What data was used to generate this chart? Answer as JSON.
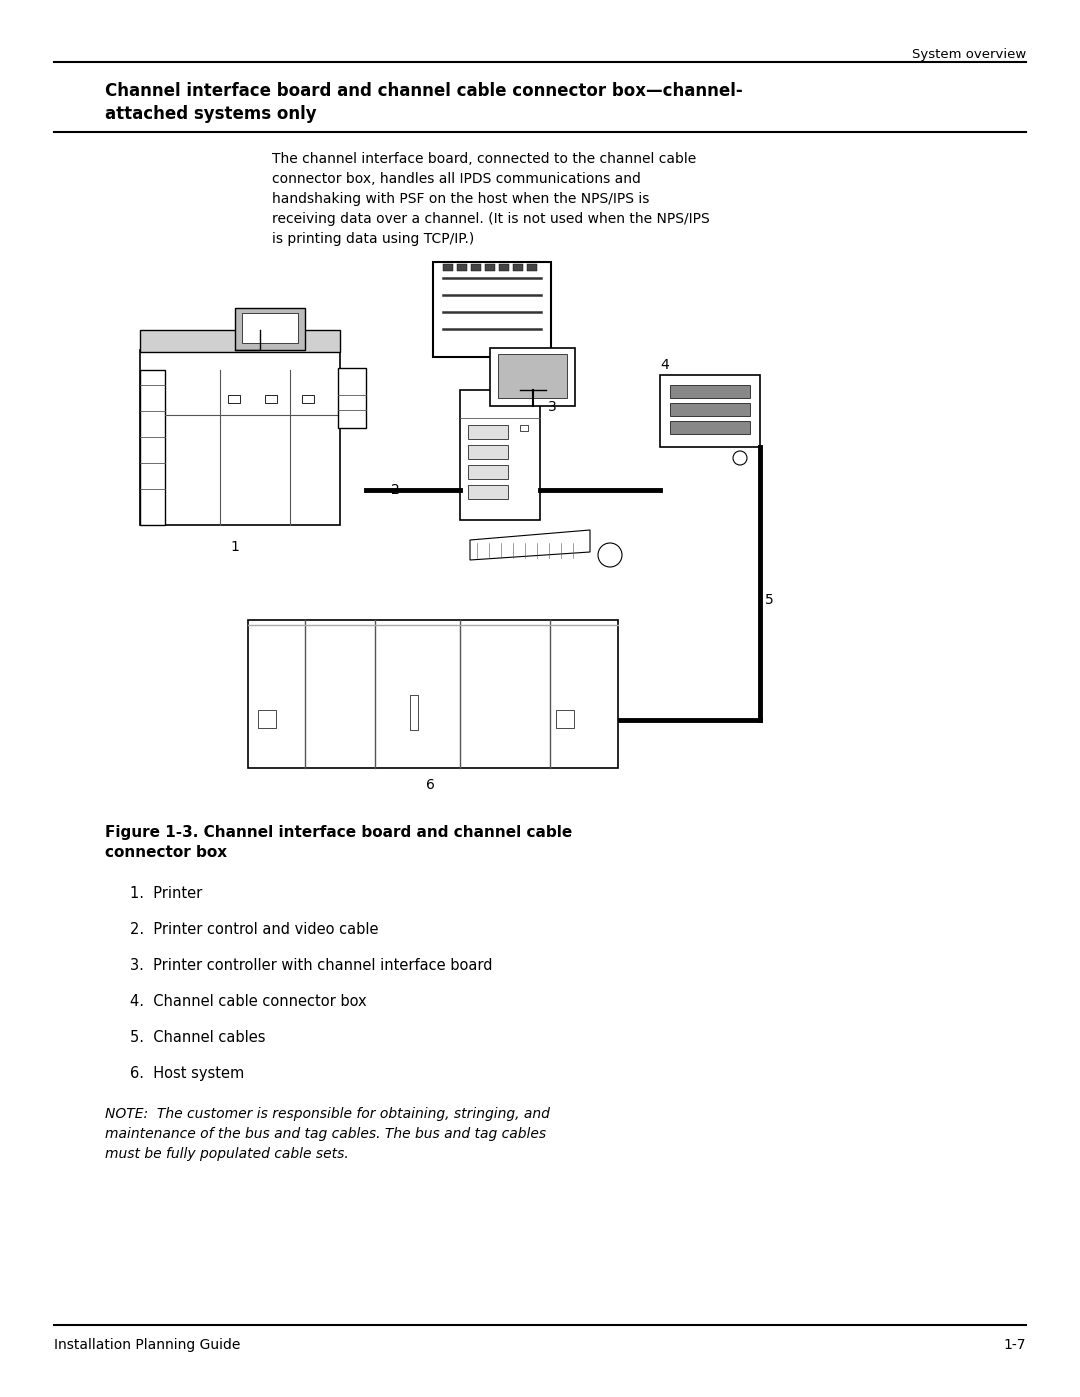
{
  "page_title": "System overview",
  "section_title": "Channel interface board and channel cable connector box—channel-\nattached systems only",
  "body_text": "The channel interface board, connected to the channel cable\nconnector box, handles all IPDS communications and\nhandshaking with PSF on the host when the NPS/IPS is\nreceiving data over a channel. (It is not used when the NPS/IPS\nis printing data using TCP/IP.)",
  "figure_caption": "Figure 1-3. Channel interface board and channel cable\nconnector box",
  "list_items": [
    "1.  Printer",
    "2.  Printer control and video cable",
    "3.  Printer controller with channel interface board",
    "4.  Channel cable connector box",
    "5.  Channel cables",
    "6.  Host system"
  ],
  "note_text": "NOTE:  The customer is responsible for obtaining, stringing, and\nmaintenance of the bus and tag cables. The bus and tag cables\nmust be fully populated cable sets.",
  "footer_left": "Installation Planning Guide",
  "footer_right": "1-7",
  "bg_color": "#ffffff",
  "text_color": "#000000",
  "line_color": "#000000"
}
